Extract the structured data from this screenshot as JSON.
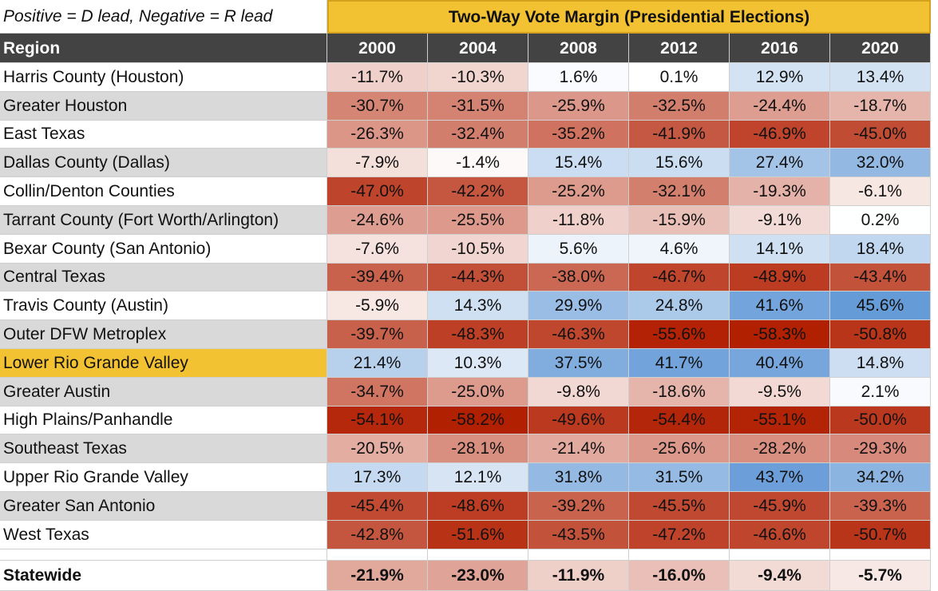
{
  "note": "Positive = D lead, Negative = R lead",
  "title": "Two-Way Vote Margin (Presidential Elections)",
  "header": [
    "Region",
    "2000",
    "2004",
    "2008",
    "2012",
    "2016",
    "2020"
  ],
  "rows": [
    [
      "Harris County (Houston)",
      "-11.7%",
      "-10.3%",
      "1.6%",
      "0.1%",
      "12.9%",
      "13.4%"
    ],
    [
      "Greater Houston",
      "-30.7%",
      "-31.5%",
      "-25.9%",
      "-32.5%",
      "-24.4%",
      "-18.7%"
    ],
    [
      "East Texas",
      "-26.3%",
      "-32.4%",
      "-35.2%",
      "-41.9%",
      "-46.9%",
      "-45.0%"
    ],
    [
      "Dallas County (Dallas)",
      "-7.9%",
      "-1.4%",
      "15.4%",
      "15.6%",
      "27.4%",
      "32.0%"
    ],
    [
      "Collin/Denton Counties",
      "-47.0%",
      "-42.2%",
      "-25.2%",
      "-32.1%",
      "-19.3%",
      "-6.1%"
    ],
    [
      "Tarrant County (Fort Worth/Arlington)",
      "-24.6%",
      "-25.5%",
      "-11.8%",
      "-15.9%",
      "-9.1%",
      "0.2%"
    ],
    [
      "Bexar County (San Antonio)",
      "-7.6%",
      "-10.5%",
      "5.6%",
      "4.6%",
      "14.1%",
      "18.4%"
    ],
    [
      "Central Texas",
      "-39.4%",
      "-44.3%",
      "-38.0%",
      "-46.7%",
      "-48.9%",
      "-43.4%"
    ],
    [
      "Travis County (Austin)",
      "-5.9%",
      "14.3%",
      "29.9%",
      "24.8%",
      "41.6%",
      "45.6%"
    ],
    [
      "Outer DFW Metroplex",
      "-39.7%",
      "-48.3%",
      "-46.3%",
      "-55.6%",
      "-58.3%",
      "-50.8%"
    ],
    [
      "Lower Rio Grande Valley",
      "21.4%",
      "10.3%",
      "37.5%",
      "41.7%",
      "40.4%",
      "14.8%"
    ],
    [
      "Greater Austin",
      "-34.7%",
      "-25.0%",
      "-9.8%",
      "-18.6%",
      "-9.5%",
      "2.1%"
    ],
    [
      "High Plains/Panhandle",
      "-54.1%",
      "-58.2%",
      "-49.6%",
      "-54.4%",
      "-55.1%",
      "-50.0%"
    ],
    [
      "Southeast Texas",
      "-20.5%",
      "-28.1%",
      "-21.4%",
      "-25.6%",
      "-28.2%",
      "-29.3%"
    ],
    [
      "Upper Rio Grande Valley",
      "17.3%",
      "12.1%",
      "31.8%",
      "31.5%",
      "43.7%",
      "34.2%"
    ],
    [
      "Greater San Antonio",
      "-45.4%",
      "-48.6%",
      "-39.2%",
      "-45.5%",
      "-45.9%",
      "-39.3%"
    ],
    [
      "West Texas",
      "-42.8%",
      "-51.6%",
      "-43.5%",
      "-47.2%",
      "-46.6%",
      "-50.7%"
    ]
  ],
  "total": [
    "Statewide",
    "-21.9%",
    "-23.0%",
    "-11.9%",
    "-16.0%",
    "-9.4%",
    "-5.7%"
  ]
}
